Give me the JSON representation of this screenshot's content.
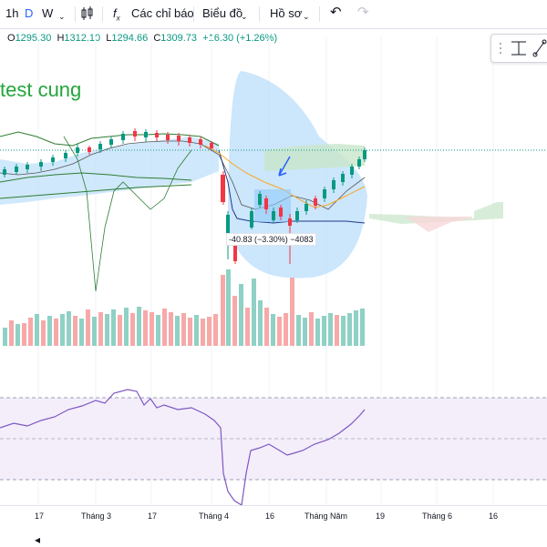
{
  "toolbar": {
    "intervals": [
      {
        "label": "1h",
        "active": false
      },
      {
        "label": "D",
        "active": true
      },
      {
        "label": "W",
        "active": false
      }
    ],
    "indicators_label": "Các chỉ báo",
    "chart_label": "Biểu đồ",
    "profile_label": "Hồ sơ"
  },
  "ohlc": {
    "open_label": "O",
    "open": "1295.30",
    "high_label": "H",
    "high": "1312.10",
    "low_label": "L",
    "low": "1294.66",
    "close_label": "C",
    "close": "1309.73",
    "change": "+16.30 (+1.26%)"
  },
  "chart_title": "test cung",
  "annotation": "-40.83 (−3.30%) −4083",
  "xaxis": {
    "labels": [
      "17",
      "Tháng 3",
      "17",
      "Tháng 4",
      "16",
      "Tháng Năm",
      "19",
      "Tháng 6",
      "16"
    ]
  },
  "colors": {
    "up": "#089981",
    "down": "#f23645",
    "accent": "#2962ff",
    "title_green": "#22a63a",
    "rsi": "#7e57c2",
    "ichimoku_cloud": "#c8e6c9",
    "ichimoku_cloud_red": "#f8d7da"
  },
  "chart_data": {
    "type": "candlestick",
    "price_candles_last": {
      "open": 1295.3,
      "high": 1312.1,
      "low": 1294.66,
      "close": 1309.73
    },
    "indicators": [
      "Volume",
      "RSI",
      "Ichimoku",
      "Moving averages"
    ]
  }
}
